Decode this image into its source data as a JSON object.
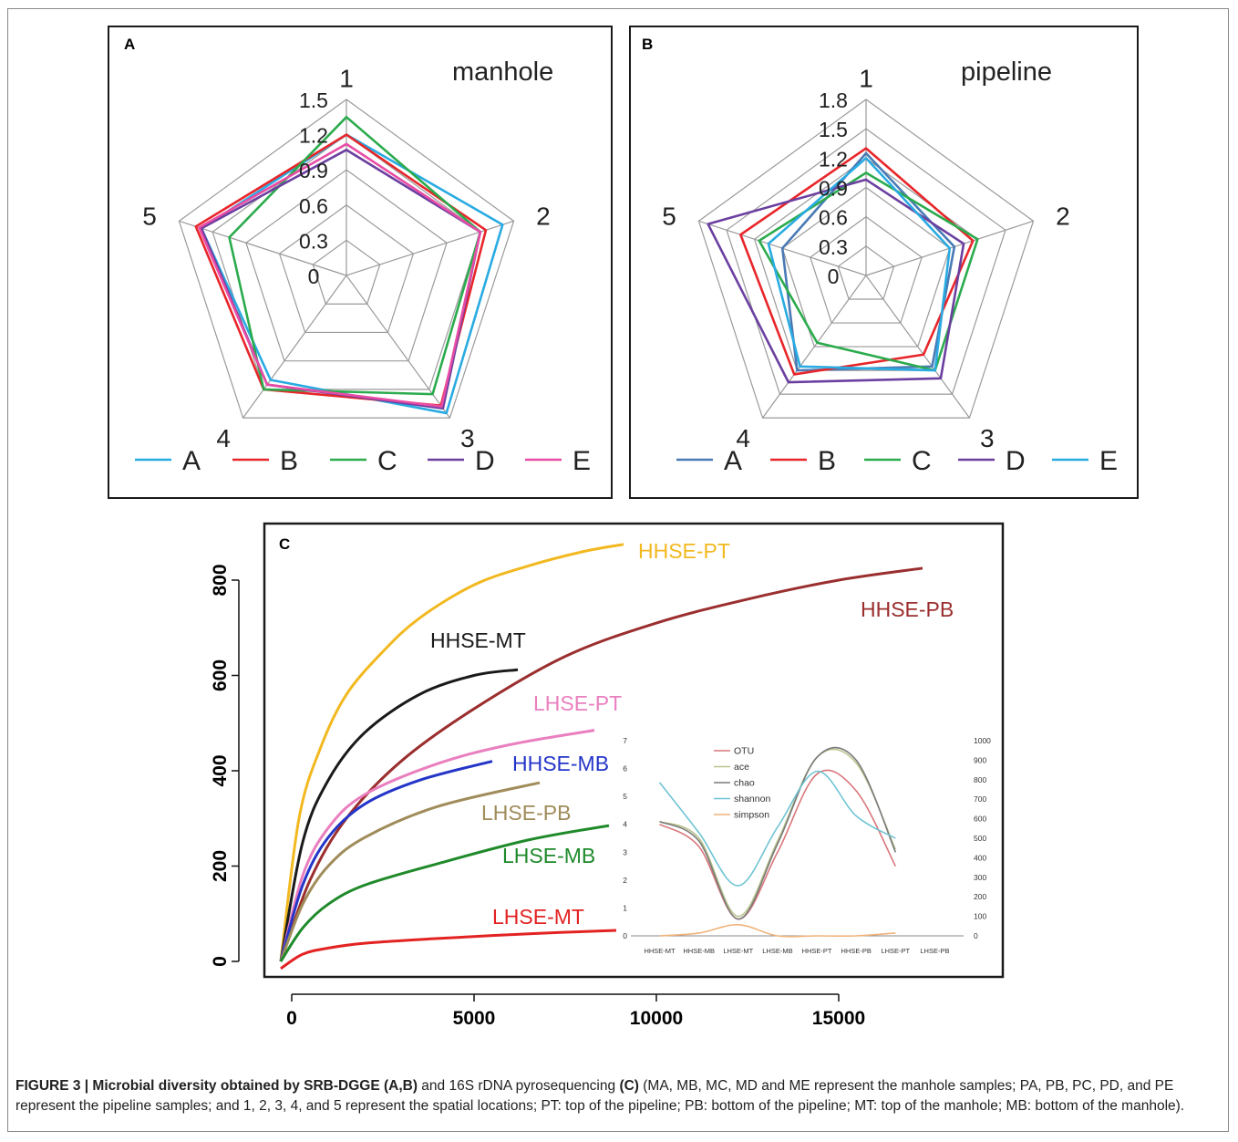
{
  "panel_a": {
    "letter": "A",
    "title": "manhole",
    "axis_labels": [
      "1",
      "2",
      "3",
      "4",
      "5"
    ],
    "tick_labels": [
      "0",
      "0.3",
      "0.6",
      "0.9",
      "1.2",
      "1.5"
    ]
  },
  "panel_b": {
    "letter": "B",
    "title": "pipeline",
    "axis_labels": [
      "1",
      "2",
      "3",
      "4",
      "5"
    ],
    "tick_labels": [
      "0",
      "0.3",
      "0.6",
      "0.9",
      "1.2",
      "1.5",
      "1.8"
    ]
  },
  "panel_c": {
    "letter": "C",
    "x_ticks": [
      "0",
      "5000",
      "10000",
      "15000"
    ],
    "y_ticks": [
      "0",
      "200",
      "400",
      "600",
      "800"
    ],
    "inset": {
      "left_ticks": [
        "0",
        "1",
        "2",
        "3",
        "4",
        "5",
        "6",
        "7"
      ],
      "right_ticks": [
        "0",
        "100",
        "200",
        "300",
        "400",
        "500",
        "600",
        "700",
        "800",
        "900",
        "1000"
      ],
      "categories": [
        "HHSE-MT",
        "HHSE-MB",
        "LHSE-MT",
        "LHSE-MB",
        "HHSE-PT",
        "HHSE-PB",
        "LHSE-PT",
        "LHSE-PB"
      ],
      "legend": [
        "OTU",
        "ace",
        "chao",
        "shannon",
        "simpson"
      ]
    }
  },
  "chart_data": [
    {
      "type": "radar",
      "panel": "A",
      "title": "manhole",
      "axes": [
        "1",
        "2",
        "3",
        "4",
        "5"
      ],
      "range": [
        0,
        1.5
      ],
      "ticks": [
        0,
        0.3,
        0.6,
        0.9,
        1.2,
        1.5
      ],
      "legend_position": "bottom",
      "series": [
        {
          "name": "A",
          "color": "#29abe2",
          "values": [
            1.2,
            1.4,
            1.45,
            1.1,
            1.3
          ]
        },
        {
          "name": "B",
          "color": "#e8262a",
          "values": [
            1.2,
            1.25,
            1.37,
            1.2,
            1.35
          ]
        },
        {
          "name": "C",
          "color": "#2bab4d",
          "values": [
            1.35,
            1.2,
            1.25,
            1.2,
            1.05
          ]
        },
        {
          "name": "D",
          "color": "#6b3fa0",
          "values": [
            1.07,
            1.2,
            1.4,
            1.15,
            1.3
          ]
        },
        {
          "name": "E",
          "color": "#e84ca5",
          "values": [
            1.12,
            1.2,
            1.38,
            1.15,
            1.32
          ]
        }
      ]
    },
    {
      "type": "radar",
      "panel": "B",
      "title": "pipeline",
      "axes": [
        "1",
        "2",
        "3",
        "4",
        "5"
      ],
      "range": [
        0,
        1.8
      ],
      "ticks": [
        0,
        0.3,
        0.6,
        0.9,
        1.2,
        1.5,
        1.8
      ],
      "legend_position": "bottom",
      "series": [
        {
          "name": "A",
          "color": "#4a7ab5",
          "values": [
            1.25,
            0.95,
            1.15,
            1.2,
            0.9
          ]
        },
        {
          "name": "B",
          "color": "#e8262a",
          "values": [
            1.3,
            1.15,
            1.0,
            1.25,
            1.35
          ]
        },
        {
          "name": "C",
          "color": "#2bab4d",
          "values": [
            1.05,
            1.2,
            1.2,
            0.85,
            1.15
          ]
        },
        {
          "name": "D",
          "color": "#6b3fa0",
          "values": [
            0.98,
            1.05,
            1.3,
            1.35,
            1.7
          ]
        },
        {
          "name": "E",
          "color": "#29abe2",
          "values": [
            1.2,
            0.9,
            1.2,
            1.15,
            1.05
          ]
        }
      ]
    },
    {
      "type": "line",
      "panel": "C",
      "xlim": [
        -500,
        19000
      ],
      "ylim": [
        -20,
        900
      ],
      "x_ticks": [
        0,
        5000,
        10000,
        15000
      ],
      "y_ticks": [
        0,
        200,
        400,
        600,
        800
      ],
      "series": [
        {
          "name": "HHSE-PT",
          "color": "#f2b81f",
          "x": [
            -300,
            200,
            800,
            1500,
            2500,
            3500,
            5000,
            6500,
            8000,
            9100
          ],
          "y": [
            0,
            300,
            450,
            560,
            650,
            720,
            790,
            830,
            860,
            875
          ]
        },
        {
          "name": "HHSE-PB",
          "color": "#9b2e2e",
          "x": [
            -300,
            500,
            1500,
            3000,
            5000,
            7500,
            10000,
            12500,
            15000,
            17300
          ],
          "y": [
            0,
            170,
            300,
            420,
            530,
            640,
            710,
            760,
            800,
            825
          ]
        },
        {
          "name": "HHSE-MT",
          "color": "#1a1a1a",
          "x": [
            -300,
            300,
            1000,
            2000,
            3500,
            5000,
            6200
          ],
          "y": [
            0,
            250,
            380,
            480,
            560,
            600,
            612
          ]
        },
        {
          "name": "LHSE-PT",
          "color": "#ea7fbf",
          "x": [
            -300,
            300,
            1000,
            2000,
            4000,
            6000,
            8300
          ],
          "y": [
            0,
            180,
            280,
            350,
            415,
            455,
            485
          ]
        },
        {
          "name": "HHSE-MB",
          "color": "#2435c8",
          "x": [
            -300,
            300,
            1000,
            2000,
            3500,
            5500
          ],
          "y": [
            0,
            160,
            260,
            330,
            380,
            420
          ]
        },
        {
          "name": "LHSE-PB",
          "color": "#a08c5a",
          "x": [
            -300,
            300,
            1000,
            2000,
            4000,
            6800
          ],
          "y": [
            0,
            120,
            200,
            260,
            325,
            375
          ]
        },
        {
          "name": "LHSE-MB",
          "color": "#1f8a2a",
          "x": [
            -300,
            300,
            1000,
            2000,
            4000,
            6500,
            8700
          ],
          "y": [
            0,
            70,
            120,
            160,
            205,
            255,
            285
          ]
        },
        {
          "name": "LHSE-MT",
          "color": "#e32222",
          "x": [
            -300,
            300,
            1000,
            2000,
            4000,
            6500,
            8900
          ],
          "y": [
            -15,
            15,
            28,
            38,
            48,
            58,
            65
          ]
        }
      ],
      "inset": {
        "type": "line",
        "categories": [
          "HHSE-MT",
          "HHSE-MB",
          "LHSE-MT",
          "LHSE-MB",
          "HHSE-PT",
          "HHSE-PB",
          "LHSE-PT",
          "LHSE-PB"
        ],
        "left_ylim": [
          0,
          7
        ],
        "right_ylim": [
          0,
          1000
        ],
        "legend_position": "top-left",
        "series": [
          {
            "name": "OTU",
            "color": "#d9767a",
            "axis": "left",
            "values": [
              4.0,
              3.2,
              0.6,
              3.0,
              5.8,
              5.2,
              2.5,
              null
            ]
          },
          {
            "name": "ace",
            "color": "#b8c48c",
            "axis": "left",
            "values": [
              4.1,
              3.5,
              0.7,
              3.4,
              6.4,
              6.2,
              3.1,
              null
            ]
          },
          {
            "name": "chao",
            "color": "#7a7a7a",
            "axis": "left",
            "values": [
              4.1,
              3.4,
              0.6,
              3.3,
              6.4,
              6.3,
              3.0,
              null
            ]
          },
          {
            "name": "shannon",
            "color": "#6fc4d4",
            "axis": "left",
            "values": [
              5.5,
              3.7,
              1.8,
              3.9,
              5.9,
              4.3,
              3.5,
              null
            ]
          },
          {
            "name": "simpson",
            "color": "#f0b27a",
            "axis": "left",
            "values": [
              0.0,
              0.1,
              0.4,
              0.0,
              0.0,
              0.0,
              0.1,
              null
            ]
          }
        ]
      }
    }
  ],
  "caption": {
    "bold_1": "FIGURE 3 | Microbial diversity obtained by SRB-DGGE (A,B)",
    "text_1": " and 16S rDNA pyrosequencing ",
    "bold_2": "(C)",
    "text_2": " (MA, MB, MC, MD and ME represent the manhole samples; PA, PB, PC, PD, and PE represent the pipeline samples; and 1, 2, 3, 4, and 5 represent the spatial locations; PT: top of the pipeline; PB: bottom of the pipeline; MT: top of the manhole; MB: bottom of the manhole)."
  }
}
